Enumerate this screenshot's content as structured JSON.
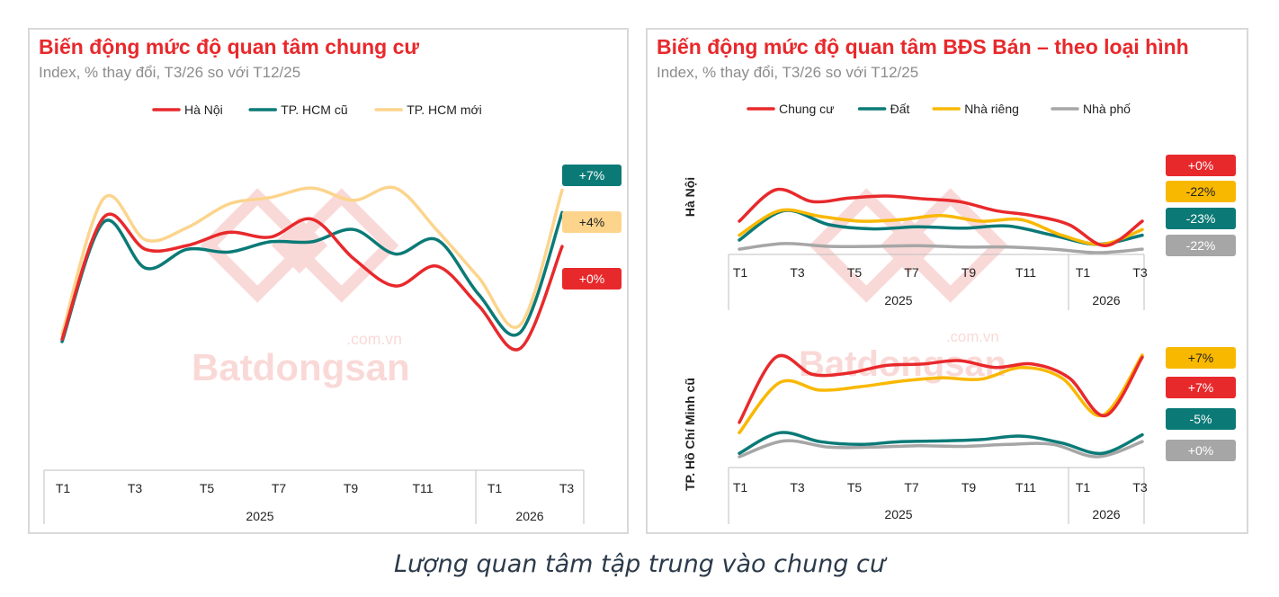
{
  "colors": {
    "red": "#e8292c",
    "teal": "#0b7a77",
    "light_orange": "#fcd48c",
    "yellow": "#f9b800",
    "gray": "#a6a6a6",
    "title_red": "#e8292c",
    "watermark": "#f5b5b0"
  },
  "watermark": {
    "brand": "Batdongsan",
    "domain": ".com.vn"
  },
  "caption": "Lượng quan tâm tập trung vào chung cư",
  "chart_data": [
    {
      "id": "left",
      "type": "line",
      "title": "Biến động mức độ quan tâm chung cư",
      "subtitle": "Index, % thay đổi, T3/26 so với T12/25",
      "x_tick_labels": [
        "T1",
        "T3",
        "T5",
        "T7",
        "T9",
        "T11",
        "T1",
        "T3"
      ],
      "year_labels": [
        "2025",
        "2026"
      ],
      "legend_position": "top",
      "grid": false,
      "series": [
        {
          "name": "Hà Nội",
          "color": "red",
          "values": [
            4.5,
            134,
            100,
            104,
            118,
            113,
            132,
            90,
            61,
            82,
            40,
            -5,
            103
          ],
          "end_label": "+0%"
        },
        {
          "name": "TP. HCM cũ",
          "color": "teal",
          "values": [
            2,
            129,
            80,
            100,
            97,
            108,
            108,
            121,
            95,
            110,
            52,
            12,
            139
          ],
          "end_label": "+7%"
        },
        {
          "name": "TP. HCM mới",
          "color": "light_orange",
          "values": [
            10,
            154,
            110,
            123,
            148,
            155,
            165,
            152,
            165,
            120,
            70,
            20,
            163
          ],
          "end_label": "+4%"
        }
      ]
    },
    {
      "id": "right",
      "title": "Biến động mức độ quan tâm BĐS Bán – theo loại hình",
      "subtitle": "Index, % thay đổi, T3/26 so với T12/25",
      "legend_position": "top",
      "legend": [
        "Chung cư",
        "Đất",
        "Nhà riêng",
        "Nhà phố"
      ],
      "subplots": [
        {
          "row_label": "Hà Nội",
          "type": "line",
          "x_tick_labels": [
            "T1",
            "T3",
            "T5",
            "T7",
            "T9",
            "T11",
            "T1",
            "T3"
          ],
          "year_labels": [
            "2025",
            "2026"
          ],
          "grid": false,
          "series": [
            {
              "name": "Chung cư",
              "color": "red",
              "values": [
                45,
                90,
                73,
                78,
                81,
                77,
                73,
                60,
                53,
                40,
                10,
                45
              ],
              "end_label": "+0%"
            },
            {
              "name": "Nhà riêng",
              "color": "yellow",
              "values": [
                25,
                60,
                52,
                45,
                47,
                53,
                45,
                47,
                25,
                12,
                33
              ],
              "end_label": "-22%"
            },
            {
              "name": "Đất",
              "color": "teal",
              "values": [
                18,
                60,
                40,
                34,
                37,
                35,
                38,
                25,
                12,
                25
              ],
              "end_label": "-23%"
            },
            {
              "name": "Nhà phố",
              "color": "gray",
              "values": [
                5,
                13,
                9,
                9,
                10,
                8,
                8,
                5,
                0,
                5
              ],
              "end_label": "-22%"
            }
          ]
        },
        {
          "row_label": "TP. Hồ Chí Minh cũ",
          "type": "line",
          "x_tick_labels": [
            "T1",
            "T3",
            "T5",
            "T7",
            "T9",
            "T11",
            "T1",
            "T3"
          ],
          "year_labels": [
            "2025",
            "2026"
          ],
          "grid": false,
          "series": [
            {
              "name": "Chung cư",
              "color": "red",
              "values": [
                40,
                135,
                110,
                112,
                123,
                125,
                130,
                120,
                125,
                105,
                50,
                135
              ],
              "end_label": "+7%"
            },
            {
              "name": "Nhà riêng",
              "color": "yellow",
              "values": [
                25,
                98,
                87,
                92,
                100,
                105,
                103,
                120,
                105,
                50,
                138
              ],
              "end_label": "+7%"
            },
            {
              "name": "Đất",
              "color": "teal",
              "values": [
                -5,
                25,
                12,
                8,
                12,
                13,
                15,
                20,
                10,
                -5,
                22
              ],
              "end_label": "-5%"
            },
            {
              "name": "Nhà phố",
              "color": "gray",
              "values": [
                -10,
                13,
                4,
                4,
                6,
                5,
                8,
                8,
                -10,
                12
              ],
              "end_label": "+0%"
            }
          ]
        }
      ]
    }
  ]
}
